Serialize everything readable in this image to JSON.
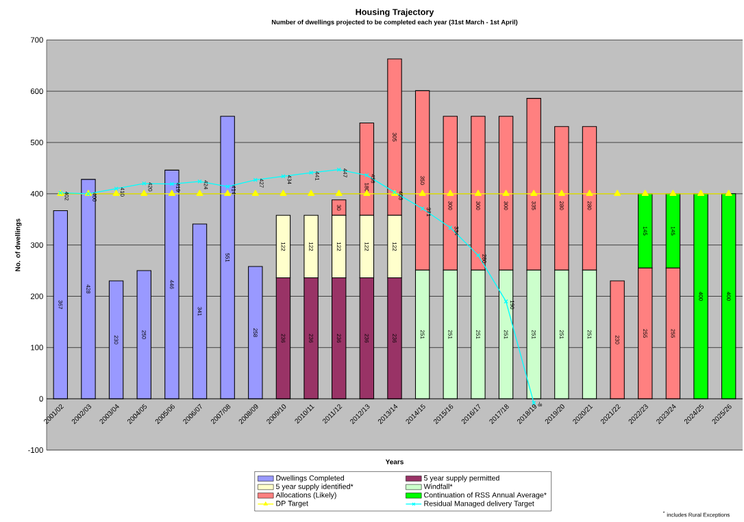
{
  "chart_data": {
    "type": "bar",
    "stacked": true,
    "title": "Housing Trajectory",
    "subtitle": "Number of dwellings projected to be completed each year (31st March - 1st April)",
    "xlabel": "Years",
    "ylabel": "No. of dwellings",
    "categories": [
      "2001/02",
      "2002/03",
      "2003/04",
      "2004/05",
      "2005/06",
      "2006/07",
      "2007/08",
      "2008/09",
      "2009/10",
      "2010/11",
      "2011/12",
      "2012/13",
      "2013/14",
      "2014/15",
      "2015/16",
      "2016/17",
      "2017/18",
      "2018/19",
      "2019/20",
      "2020/21",
      "2021/22",
      "2022/23",
      "2023/24",
      "2024/25",
      "2025/26"
    ],
    "series": [
      {
        "name": "Dwellings Completed",
        "color": "#9999ff",
        "values": [
          367,
          428,
          230,
          250,
          446,
          341,
          551,
          258,
          null,
          null,
          null,
          null,
          null,
          null,
          null,
          null,
          null,
          null,
          null,
          null,
          null,
          null,
          null,
          null,
          null
        ],
        "value_labels": [
          "367",
          "428",
          "230",
          "250",
          "446",
          "341",
          "551",
          "258",
          null,
          null,
          null,
          null,
          null,
          null,
          null,
          null,
          null,
          null,
          null,
          null,
          null,
          null,
          null,
          null,
          null
        ]
      },
      {
        "name": "5 year supply permitted",
        "color": "#993366",
        "values": [
          null,
          null,
          null,
          null,
          null,
          null,
          null,
          null,
          236,
          236,
          236,
          236,
          236,
          null,
          null,
          null,
          null,
          null,
          null,
          null,
          null,
          null,
          null,
          null,
          null
        ],
        "value_labels": [
          null,
          null,
          null,
          null,
          null,
          null,
          null,
          null,
          "236",
          "236",
          "236",
          "236",
          "236",
          null,
          null,
          null,
          null,
          null,
          null,
          null,
          null,
          null,
          null,
          null,
          null
        ]
      },
      {
        "name": "5 year supply identified*",
        "color": "#ffffcc",
        "values": [
          null,
          null,
          null,
          null,
          null,
          null,
          null,
          null,
          122,
          122,
          122,
          122,
          122,
          null,
          null,
          null,
          null,
          null,
          null,
          null,
          null,
          null,
          null,
          null,
          null
        ],
        "value_labels": [
          null,
          null,
          null,
          null,
          null,
          null,
          null,
          null,
          "122",
          "122",
          "122",
          "122",
          "122",
          null,
          null,
          null,
          null,
          null,
          null,
          null,
          null,
          null,
          null,
          null,
          null
        ]
      },
      {
        "name": "Windfall*",
        "color": "#ccffcc",
        "values": [
          null,
          null,
          null,
          null,
          null,
          null,
          null,
          null,
          null,
          null,
          null,
          null,
          null,
          251,
          251,
          251,
          251,
          251,
          251,
          251,
          null,
          null,
          null,
          null,
          null
        ],
        "value_labels": [
          null,
          null,
          null,
          null,
          null,
          null,
          null,
          null,
          null,
          null,
          null,
          null,
          null,
          "251",
          "251",
          "251",
          "251",
          "251",
          "251",
          "251",
          null,
          null,
          null,
          null,
          null
        ]
      },
      {
        "name": "Allocations (Likely)",
        "color": "#ff8080",
        "values": [
          null,
          null,
          null,
          null,
          null,
          null,
          null,
          null,
          null,
          null,
          30,
          180,
          305,
          350,
          300,
          300,
          300,
          335,
          280,
          280,
          230,
          255,
          255,
          null,
          null
        ],
        "value_labels": [
          null,
          null,
          null,
          null,
          null,
          null,
          null,
          null,
          null,
          null,
          "30",
          "180",
          "305",
          "350",
          "300",
          "300",
          "300",
          "335",
          "280",
          "280",
          "230",
          "255",
          "255",
          null,
          null
        ]
      },
      {
        "name": "Continuation of RSS Annual Average*",
        "color": "#00ff00",
        "values": [
          null,
          null,
          null,
          null,
          null,
          null,
          null,
          null,
          null,
          null,
          null,
          null,
          null,
          null,
          null,
          null,
          null,
          null,
          null,
          null,
          null,
          145,
          145,
          400,
          400
        ],
        "value_labels": [
          null,
          null,
          null,
          null,
          null,
          null,
          null,
          null,
          null,
          null,
          null,
          null,
          null,
          null,
          null,
          null,
          null,
          null,
          null,
          null,
          null,
          "145",
          "145",
          "400",
          "400"
        ]
      },
      {
        "name": "DP Target",
        "type": "line",
        "color": "#ffff00",
        "marker": "triangle",
        "values": [
          400,
          400,
          400,
          400,
          400,
          400,
          400,
          400,
          400,
          400,
          400,
          400,
          400,
          400,
          400,
          400,
          400,
          400,
          400,
          400,
          400,
          400,
          400,
          400,
          400
        ]
      },
      {
        "name": "Residual Managed delivery Target",
        "type": "line",
        "color": "#00ffff",
        "marker": "cross",
        "values": [
          402,
          400,
          410,
          420,
          419,
          424,
          414,
          427,
          434,
          441,
          447,
          436,
          403,
          371,
          334,
          280,
          190,
          -8,
          null,
          null,
          null,
          null,
          null,
          null,
          null
        ],
        "value_labels": [
          "402",
          "400",
          "410",
          "420",
          "419",
          "424",
          "414",
          "427",
          "434",
          "441",
          "447",
          "436",
          "403",
          "371",
          "334",
          "280",
          "190",
          "-8",
          null,
          null,
          null,
          null,
          null,
          null,
          null
        ]
      }
    ],
    "ylim": [
      -100,
      700
    ],
    "yticks": [
      -100,
      0,
      100,
      200,
      300,
      400,
      500,
      600,
      700
    ],
    "grid": "y",
    "legend": "bottom",
    "annotations": [
      "$^{*}$ includes Rural Exceptions"
    ]
  }
}
